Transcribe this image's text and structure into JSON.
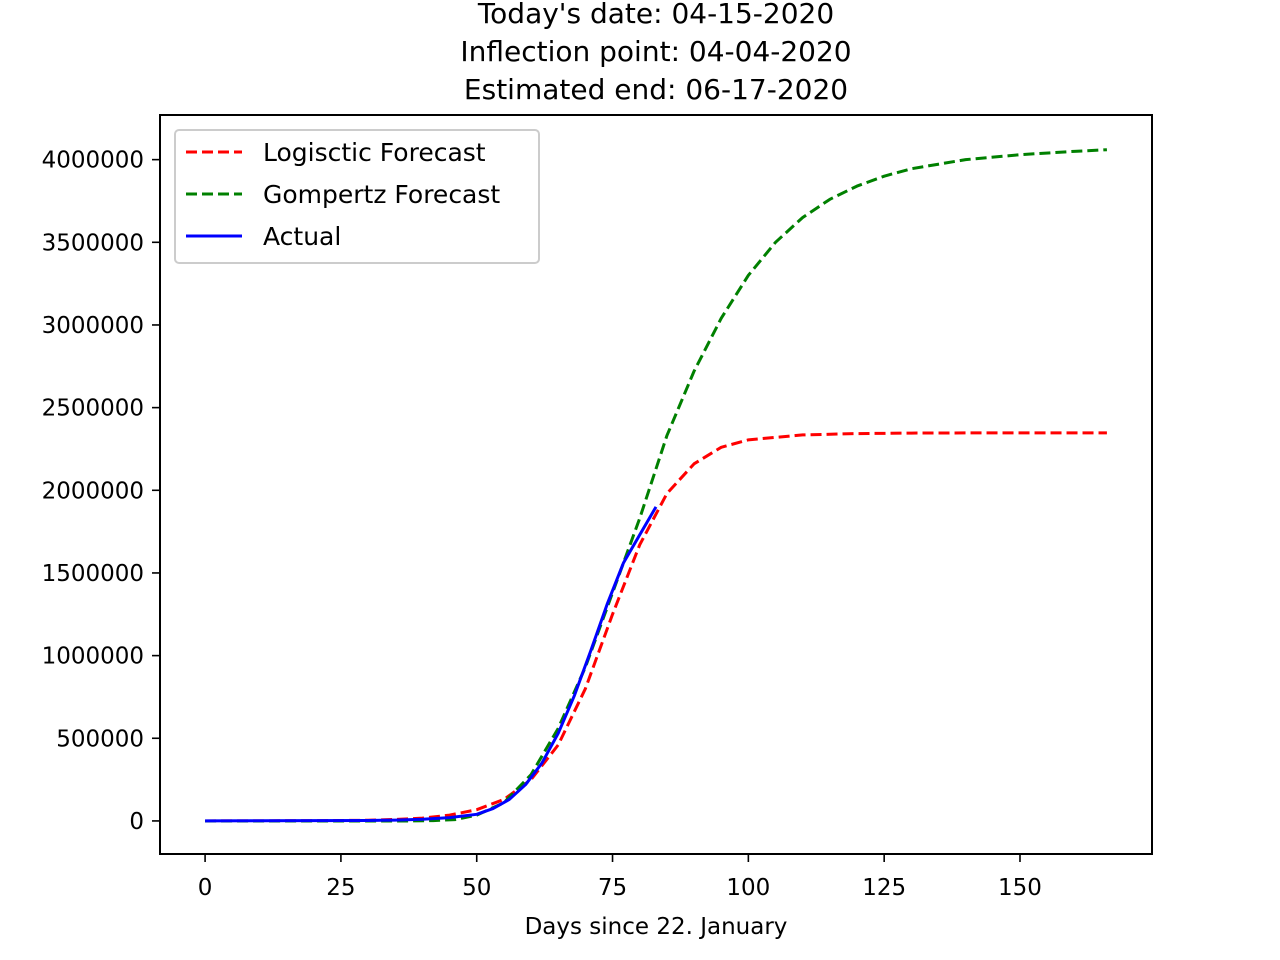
{
  "chart_data": {
    "type": "line",
    "title_lines": [
      "Today's date: 04-15-2020",
      "Inflection point: 04-04-2020",
      "Estimated end: 06-17-2020"
    ],
    "xlabel": "Days since 22. January",
    "ylabel": "",
    "xlim": [
      -8.3,
      174.3
    ],
    "ylim": [
      -200000,
      4270000
    ],
    "x_ticks": [
      0,
      25,
      50,
      75,
      100,
      125,
      150
    ],
    "x_tick_labels": [
      "0",
      "25",
      "50",
      "75",
      "100",
      "125",
      "150"
    ],
    "y_ticks": [
      0,
      500000,
      1000000,
      1500000,
      2000000,
      2500000,
      3000000,
      3500000,
      4000000
    ],
    "y_tick_labels": [
      "0",
      "500000",
      "1000000",
      "1500000",
      "2000000",
      "2500000",
      "3000000",
      "3500000",
      "4000000"
    ],
    "grid": false,
    "legend_position": "top-left",
    "series": [
      {
        "name": "Logisctic Forecast",
        "color": "#ff0000",
        "style": "dashed",
        "x": [
          0,
          10,
          20,
          30,
          35,
          40,
          45,
          50,
          55,
          60,
          65,
          70,
          75,
          80,
          85,
          90,
          95,
          100,
          110,
          120,
          130,
          140,
          150,
          160,
          166
        ],
        "y": [
          0,
          500,
          1200,
          4000,
          9000,
          17000,
          35000,
          68000,
          130000,
          250000,
          460000,
          800000,
          1250000,
          1670000,
          1980000,
          2160000,
          2260000,
          2305000,
          2335000,
          2343000,
          2346000,
          2347000,
          2347000,
          2347000,
          2347000
        ]
      },
      {
        "name": "Gompertz Forecast",
        "color": "#008000",
        "style": "dashed",
        "x": [
          0,
          20,
          30,
          38,
          42,
          46,
          50,
          55,
          60,
          65,
          70,
          75,
          80,
          85,
          90,
          95,
          100,
          105,
          110,
          115,
          120,
          125,
          130,
          140,
          150,
          160,
          166
        ],
        "y": [
          0,
          0,
          0,
          0,
          2000,
          8000,
          35000,
          110000,
          280000,
          560000,
          930000,
          1380000,
          1830000,
          2330000,
          2720000,
          3040000,
          3300000,
          3500000,
          3650000,
          3760000,
          3840000,
          3900000,
          3945000,
          4000000,
          4030000,
          4050000,
          4060000
        ]
      },
      {
        "name": "Actual",
        "color": "#0000ff",
        "style": "solid",
        "x": [
          0,
          10,
          20,
          30,
          35,
          40,
          45,
          50,
          53,
          56,
          59,
          62,
          65,
          68,
          71,
          74,
          77,
          80,
          83
        ],
        "y": [
          555,
          1000,
          2000,
          3000,
          5000,
          10000,
          20000,
          40000,
          75000,
          130000,
          220000,
          350000,
          530000,
          760000,
          1030000,
          1310000,
          1560000,
          1730000,
          1900000
        ]
      }
    ]
  }
}
